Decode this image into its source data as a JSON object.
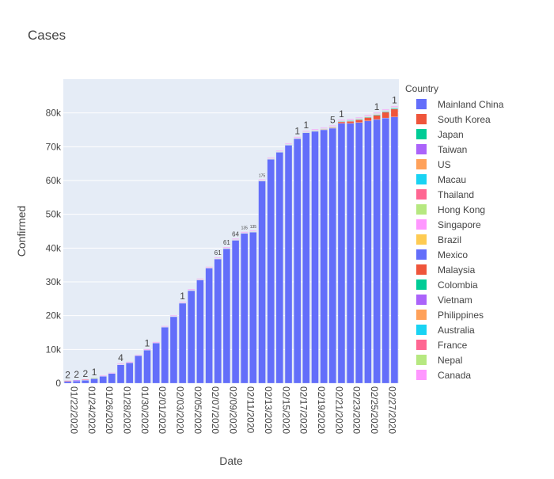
{
  "chart_data": {
    "type": "bar",
    "title": "Cases",
    "xlabel": "Date",
    "ylabel": "Confirmed",
    "ylim": [
      0,
      90000
    ],
    "y_ticks": [
      0,
      10000,
      20000,
      30000,
      40000,
      50000,
      60000,
      70000,
      80000
    ],
    "y_tick_labels": [
      "0",
      "10k",
      "20k",
      "30k",
      "40k",
      "50k",
      "60k",
      "70k",
      "80k"
    ],
    "x_tick_labels": [
      "01/22/2020",
      "01/24/2020",
      "01/26/2020",
      "01/28/2020",
      "01/30/2020",
      "02/01/2020",
      "02/03/2020",
      "02/05/2020",
      "02/07/2020",
      "02/09/2020",
      "02/11/2020",
      "02/13/2020",
      "02/15/2020",
      "02/17/2020",
      "02/19/2020",
      "02/21/2020",
      "02/23/2020",
      "02/25/2020",
      "02/27/2020"
    ],
    "grid": true,
    "legend_title": "Country",
    "legend_position": "right",
    "categories": [
      "01/22/2020",
      "01/23/2020",
      "01/24/2020",
      "01/25/2020",
      "01/26/2020",
      "01/27/2020",
      "01/28/2020",
      "01/29/2020",
      "01/30/2020",
      "01/31/2020",
      "02/01/2020",
      "02/02/2020",
      "02/03/2020",
      "02/04/2020",
      "02/05/2020",
      "02/06/2020",
      "02/07/2020",
      "02/08/2020",
      "02/09/2020",
      "02/10/2020",
      "02/11/2020",
      "02/12/2020",
      "02/13/2020",
      "02/14/2020",
      "02/15/2020",
      "02/16/2020",
      "02/17/2020",
      "02/18/2020",
      "02/19/2020",
      "02/20/2020",
      "02/21/2020",
      "02/22/2020",
      "02/23/2020",
      "02/24/2020",
      "02/25/2020",
      "02/26/2020",
      "02/27/2020",
      "02/28/2020"
    ],
    "series": [
      {
        "name": "Mainland China",
        "color": "#636efa",
        "values": [
          547,
          639,
          916,
          1399,
          2062,
          2863,
          5494,
          6070,
          8124,
          9783,
          11871,
          16607,
          19693,
          23680,
          27409,
          30553,
          34075,
          36778,
          39790,
          42306,
          44327,
          44699,
          59832,
          66292,
          68347,
          70446,
          72364,
          74139,
          74546,
          74999,
          75472,
          76922,
          76938,
          77152,
          77660,
          78065,
          78498,
          78824
        ]
      },
      {
        "name": "South Korea",
        "color": "#EF553B",
        "values": [
          1,
          1,
          2,
          2,
          3,
          4,
          4,
          4,
          4,
          11,
          12,
          15,
          15,
          16,
          19,
          23,
          24,
          24,
          25,
          27,
          28,
          28,
          28,
          28,
          28,
          29,
          30,
          31,
          51,
          104,
          204,
          433,
          602,
          833,
          977,
          1261,
          1766,
          2337
        ]
      },
      {
        "name": "Japan",
        "color": "#00cc96",
        "values": [
          2,
          1,
          2,
          2,
          4,
          4,
          7,
          7,
          11,
          15,
          20,
          20,
          20,
          22,
          22,
          45,
          25,
          25,
          26,
          26,
          26,
          28,
          28,
          29,
          43,
          59,
          66,
          74,
          84,
          94,
          105,
          122,
          147,
          159,
          170,
          189,
          214,
          228
        ]
      },
      {
        "name": "Taiwan",
        "color": "#ab63fa",
        "values": [
          1,
          1,
          3,
          3,
          4,
          5,
          8,
          8,
          9,
          10,
          10,
          10,
          10,
          11,
          11,
          16,
          16,
          17,
          18,
          18,
          18,
          18,
          18,
          18,
          18,
          20,
          22,
          22,
          23,
          24,
          26,
          26,
          28,
          30,
          31,
          32,
          32,
          34
        ]
      },
      {
        "name": "US",
        "color": "#FFA15A",
        "values": [
          1,
          1,
          2,
          2,
          5,
          5,
          5,
          5,
          5,
          7,
          8,
          8,
          11,
          11,
          11,
          11,
          11,
          11,
          11,
          11,
          12,
          12,
          13,
          13,
          13,
          13,
          13,
          13,
          13,
          13,
          15,
          15,
          15,
          51,
          51,
          57,
          58,
          60
        ]
      },
      {
        "name": "Macau",
        "color": "#19d3f3",
        "values": [
          1,
          2,
          2,
          2,
          5,
          6,
          7,
          7,
          7,
          7,
          7,
          7,
          8,
          10,
          10,
          10,
          10,
          10,
          10,
          10,
          10,
          10,
          10,
          10,
          10,
          10,
          10,
          10,
          10,
          10,
          10,
          10,
          10,
          10,
          10,
          10,
          10,
          10
        ]
      },
      {
        "name": "Thailand",
        "color": "#FF6692",
        "values": [
          2,
          3,
          5,
          7,
          8,
          8,
          14,
          14,
          14,
          19,
          19,
          19,
          19,
          25,
          25,
          25,
          25,
          32,
          32,
          32,
          33,
          33,
          33,
          33,
          34,
          35,
          35,
          35,
          35,
          35,
          35,
          35,
          35,
          37,
          40,
          40,
          41,
          42
        ]
      },
      {
        "name": "Hong Kong",
        "color": "#B6E880",
        "values": [
          0,
          2,
          2,
          5,
          8,
          8,
          8,
          10,
          10,
          13,
          13,
          15,
          15,
          17,
          21,
          24,
          25,
          26,
          29,
          38,
          49,
          50,
          53,
          56,
          56,
          57,
          60,
          62,
          65,
          68,
          68,
          69,
          74,
          79,
          84,
          91,
          92,
          94
        ]
      },
      {
        "name": "Singapore",
        "color": "#FF97FF",
        "values": [
          0,
          1,
          3,
          3,
          4,
          5,
          7,
          7,
          10,
          13,
          16,
          18,
          18,
          24,
          28,
          28,
          30,
          33,
          40,
          45,
          47,
          50,
          58,
          67,
          72,
          75,
          77,
          81,
          84,
          84,
          85,
          85,
          89,
          89,
          91,
          93,
          96,
          98
        ]
      },
      {
        "name": "Brazil",
        "color": "#FECB52",
        "values": [
          0,
          0,
          0,
          0,
          0,
          0,
          0,
          0,
          0,
          0,
          0,
          0,
          0,
          0,
          0,
          0,
          0,
          0,
          0,
          0,
          0,
          0,
          0,
          0,
          0,
          0,
          0,
          0,
          0,
          0,
          0,
          0,
          0,
          0,
          0,
          1,
          1,
          1
        ]
      },
      {
        "name": "Mexico",
        "color": "#636efa",
        "values": [
          0,
          0,
          0,
          0,
          0,
          0,
          0,
          0,
          0,
          0,
          0,
          0,
          0,
          0,
          0,
          0,
          0,
          0,
          0,
          0,
          0,
          0,
          0,
          0,
          0,
          0,
          0,
          0,
          0,
          0,
          0,
          0,
          0,
          0,
          0,
          0,
          0,
          1
        ]
      },
      {
        "name": "Malaysia",
        "color": "#EF553B",
        "values": [
          0,
          0,
          0,
          3,
          4,
          4,
          4,
          7,
          8,
          8,
          8,
          8,
          8,
          10,
          12,
          12,
          12,
          16,
          16,
          18,
          18,
          18,
          19,
          19,
          22,
          22,
          22,
          22,
          22,
          22,
          22,
          22,
          22,
          22,
          22,
          22,
          23,
          23
        ]
      },
      {
        "name": "Colombia",
        "color": "#00cc96",
        "values": [
          0,
          0,
          0,
          0,
          0,
          0,
          0,
          0,
          0,
          0,
          0,
          0,
          0,
          0,
          0,
          0,
          0,
          0,
          0,
          0,
          0,
          0,
          0,
          0,
          0,
          0,
          0,
          0,
          0,
          0,
          0,
          0,
          0,
          0,
          0,
          0,
          0,
          0
        ]
      },
      {
        "name": "Vietnam",
        "color": "#ab63fa",
        "values": [
          0,
          2,
          2,
          2,
          2,
          2,
          2,
          2,
          2,
          5,
          6,
          6,
          8,
          8,
          8,
          10,
          10,
          13,
          13,
          14,
          15,
          15,
          16,
          16,
          16,
          16,
          16,
          16,
          16,
          16,
          16,
          16,
          16,
          16,
          16,
          16,
          16,
          16
        ]
      },
      {
        "name": "Philippines",
        "color": "#FFA15A",
        "values": [
          0,
          0,
          0,
          0,
          0,
          0,
          0,
          0,
          0,
          1,
          1,
          2,
          2,
          2,
          2,
          2,
          3,
          3,
          3,
          3,
          3,
          3,
          3,
          3,
          3,
          3,
          3,
          3,
          3,
          3,
          3,
          3,
          3,
          3,
          3,
          3,
          3,
          3
        ]
      },
      {
        "name": "Australia",
        "color": "#19d3f3",
        "values": [
          0,
          0,
          0,
          0,
          4,
          5,
          5,
          6,
          9,
          9,
          12,
          12,
          12,
          13,
          13,
          14,
          15,
          15,
          15,
          15,
          15,
          15,
          15,
          15,
          15,
          15,
          15,
          15,
          15,
          15,
          15,
          15,
          15,
          15,
          15,
          15,
          15,
          15
        ]
      },
      {
        "name": "France",
        "color": "#FF6692",
        "values": [
          0,
          0,
          2,
          3,
          3,
          3,
          4,
          5,
          5,
          5,
          6,
          6,
          6,
          6,
          6,
          6,
          6,
          11,
          11,
          11,
          11,
          11,
          11,
          11,
          12,
          12,
          12,
          12,
          12,
          12,
          12,
          12,
          12,
          12,
          14,
          18,
          38,
          57
        ]
      },
      {
        "name": "Nepal",
        "color": "#B6E880",
        "values": [
          0,
          0,
          0,
          1,
          1,
          1,
          1,
          1,
          1,
          1,
          1,
          1,
          1,
          1,
          1,
          1,
          1,
          1,
          1,
          1,
          1,
          1,
          1,
          1,
          1,
          1,
          1,
          1,
          1,
          1,
          1,
          1,
          1,
          1,
          1,
          1,
          1,
          1
        ]
      },
      {
        "name": "Canada",
        "color": "#FF97FF",
        "values": [
          0,
          0,
          0,
          0,
          1,
          1,
          2,
          2,
          2,
          4,
          4,
          4,
          4,
          4,
          5,
          5,
          7,
          7,
          7,
          7,
          7,
          7,
          7,
          7,
          7,
          7,
          7,
          7,
          8,
          8,
          8,
          9,
          9,
          10,
          10,
          11,
          11,
          12
        ]
      }
    ],
    "bar_annotations": [
      {
        "category": "01/22/2020",
        "text": "2"
      },
      {
        "category": "01/23/2020",
        "text": "2"
      },
      {
        "category": "01/24/2020",
        "text": "2"
      },
      {
        "category": "01/25/2020",
        "text": "1"
      },
      {
        "category": "01/28/2020",
        "text": "4"
      },
      {
        "category": "01/31/2020",
        "text": "1"
      },
      {
        "category": "02/04/2020",
        "text": "1"
      },
      {
        "category": "02/08/2020",
        "text": "61"
      },
      {
        "category": "02/09/2020",
        "text": "61"
      },
      {
        "category": "02/10/2020",
        "text": "64"
      },
      {
        "category": "02/11/2020",
        "text": "135"
      },
      {
        "category": "02/12/2020",
        "text": "135"
      },
      {
        "category": "02/13/2020",
        "text": "175"
      },
      {
        "category": "02/17/2020",
        "text": "1"
      },
      {
        "category": "02/18/2020",
        "text": "1"
      },
      {
        "category": "02/21/2020",
        "text": "5"
      },
      {
        "category": "02/22/2020",
        "text": "1"
      },
      {
        "category": "02/26/2020",
        "text": "1"
      },
      {
        "category": "02/28/2020",
        "text": "1"
      }
    ]
  }
}
